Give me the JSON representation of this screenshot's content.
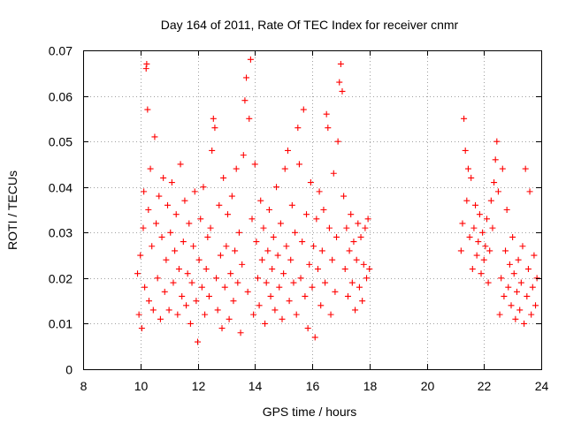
{
  "chart_data": {
    "type": "scatter",
    "title": "Day 164 of 2011, Rate Of TEC Index for receiver cnmr",
    "xlabel": "GPS time / hours",
    "ylabel": "ROTI / TECUs",
    "xlim": [
      8,
      24
    ],
    "ylim": [
      0,
      0.07
    ],
    "xticks": [
      "8",
      "10",
      "12",
      "14",
      "16",
      "18",
      "20",
      "22",
      "24"
    ],
    "yticks": [
      "0",
      "0.01",
      "0.02",
      "0.03",
      "0.04",
      "0.05",
      "0.06",
      "0.07"
    ],
    "grid": true,
    "marker": "plus",
    "color": "#ff0000",
    "series": [
      {
        "values": [
          [
            9.9,
            0.021
          ],
          [
            9.95,
            0.012
          ],
          [
            10.0,
            0.025
          ],
          [
            10.05,
            0.009
          ],
          [
            10.1,
            0.031
          ],
          [
            10.12,
            0.039
          ],
          [
            10.15,
            0.018
          ],
          [
            10.2,
            0.066
          ],
          [
            10.22,
            0.067
          ],
          [
            10.25,
            0.057
          ],
          [
            10.28,
            0.035
          ],
          [
            10.3,
            0.015
          ],
          [
            10.35,
            0.044
          ],
          [
            10.4,
            0.027
          ],
          [
            10.45,
            0.013
          ],
          [
            10.5,
            0.051
          ],
          [
            10.55,
            0.032
          ],
          [
            10.6,
            0.02
          ],
          [
            10.65,
            0.038
          ],
          [
            10.7,
            0.011
          ],
          [
            10.75,
            0.029
          ],
          [
            10.8,
            0.042
          ],
          [
            10.85,
            0.017
          ],
          [
            10.9,
            0.024
          ],
          [
            10.95,
            0.036
          ],
          [
            11.0,
            0.013
          ],
          [
            11.05,
            0.03
          ],
          [
            11.1,
            0.041
          ],
          [
            11.15,
            0.019
          ],
          [
            11.2,
            0.026
          ],
          [
            11.25,
            0.034
          ],
          [
            11.3,
            0.012
          ],
          [
            11.35,
            0.022
          ],
          [
            11.4,
            0.045
          ],
          [
            11.45,
            0.016
          ],
          [
            11.5,
            0.028
          ],
          [
            11.55,
            0.037
          ],
          [
            11.6,
            0.014
          ],
          [
            11.65,
            0.021
          ],
          [
            11.7,
            0.032
          ],
          [
            11.75,
            0.01
          ],
          [
            11.8,
            0.019
          ],
          [
            11.85,
            0.027
          ],
          [
            11.9,
            0.039
          ],
          [
            11.95,
            0.015
          ],
          [
            12.0,
            0.006
          ],
          [
            12.05,
            0.024
          ],
          [
            12.1,
            0.033
          ],
          [
            12.15,
            0.018
          ],
          [
            12.2,
            0.04
          ],
          [
            12.25,
            0.012
          ],
          [
            12.3,
            0.022
          ],
          [
            12.35,
            0.029
          ],
          [
            12.4,
            0.016
          ],
          [
            12.45,
            0.031
          ],
          [
            12.5,
            0.048
          ],
          [
            12.55,
            0.055
          ],
          [
            12.6,
            0.053
          ],
          [
            12.65,
            0.02
          ],
          [
            12.7,
            0.013
          ],
          [
            12.75,
            0.036
          ],
          [
            12.8,
            0.025
          ],
          [
            12.85,
            0.009
          ],
          [
            12.9,
            0.042
          ],
          [
            12.95,
            0.018
          ],
          [
            13.0,
            0.027
          ],
          [
            13.05,
            0.034
          ],
          [
            13.1,
            0.011
          ],
          [
            13.15,
            0.021
          ],
          [
            13.2,
            0.038
          ],
          [
            13.25,
            0.015
          ],
          [
            13.3,
            0.026
          ],
          [
            13.35,
            0.044
          ],
          [
            13.4,
            0.019
          ],
          [
            13.45,
            0.03
          ],
          [
            13.5,
            0.008
          ],
          [
            13.55,
            0.023
          ],
          [
            13.6,
            0.047
          ],
          [
            13.65,
            0.059
          ],
          [
            13.7,
            0.064
          ],
          [
            13.75,
            0.017
          ],
          [
            13.8,
            0.055
          ],
          [
            13.85,
            0.068
          ],
          [
            13.9,
            0.033
          ],
          [
            13.95,
            0.012
          ],
          [
            14.0,
            0.045
          ],
          [
            14.05,
            0.028
          ],
          [
            14.1,
            0.02
          ],
          [
            14.15,
            0.014
          ],
          [
            14.2,
            0.037
          ],
          [
            14.25,
            0.024
          ],
          [
            14.3,
            0.031
          ],
          [
            14.35,
            0.01
          ],
          [
            14.4,
            0.019
          ],
          [
            14.45,
            0.026
          ],
          [
            14.5,
            0.035
          ],
          [
            14.55,
            0.016
          ],
          [
            14.6,
            0.022
          ],
          [
            14.65,
            0.029
          ],
          [
            14.7,
            0.013
          ],
          [
            14.75,
            0.04
          ],
          [
            14.8,
            0.025
          ],
          [
            14.85,
            0.018
          ],
          [
            14.9,
            0.032
          ],
          [
            14.95,
            0.011
          ],
          [
            15.0,
            0.021
          ],
          [
            15.05,
            0.044
          ],
          [
            15.1,
            0.027
          ],
          [
            15.15,
            0.048
          ],
          [
            15.2,
            0.015
          ],
          [
            15.25,
            0.024
          ],
          [
            15.3,
            0.036
          ],
          [
            15.35,
            0.019
          ],
          [
            15.4,
            0.03
          ],
          [
            15.45,
            0.012
          ],
          [
            15.5,
            0.053
          ],
          [
            15.55,
            0.045
          ],
          [
            15.6,
            0.02
          ],
          [
            15.65,
            0.028
          ],
          [
            15.7,
            0.057
          ],
          [
            15.75,
            0.016
          ],
          [
            15.8,
            0.034
          ],
          [
            15.85,
            0.009
          ],
          [
            15.9,
            0.023
          ],
          [
            15.95,
            0.041
          ],
          [
            16.0,
            0.018
          ],
          [
            16.05,
            0.027
          ],
          [
            16.1,
            0.007
          ],
          [
            16.15,
            0.033
          ],
          [
            16.2,
            0.022
          ],
          [
            16.25,
            0.039
          ],
          [
            16.3,
            0.014
          ],
          [
            16.35,
            0.026
          ],
          [
            16.4,
            0.035
          ],
          [
            16.45,
            0.019
          ],
          [
            16.5,
            0.056
          ],
          [
            16.55,
            0.053
          ],
          [
            16.6,
            0.031
          ],
          [
            16.65,
            0.012
          ],
          [
            16.7,
            0.024
          ],
          [
            16.75,
            0.043
          ],
          [
            16.8,
            0.017
          ],
          [
            16.85,
            0.029
          ],
          [
            16.9,
            0.05
          ],
          [
            16.95,
            0.063
          ],
          [
            17.0,
            0.067
          ],
          [
            17.05,
            0.061
          ],
          [
            17.1,
            0.038
          ],
          [
            17.15,
            0.022
          ],
          [
            17.2,
            0.031
          ],
          [
            17.25,
            0.016
          ],
          [
            17.3,
            0.026
          ],
          [
            17.35,
            0.034
          ],
          [
            17.4,
            0.019
          ],
          [
            17.45,
            0.028
          ],
          [
            17.5,
            0.013
          ],
          [
            17.55,
            0.024
          ],
          [
            17.6,
            0.032
          ],
          [
            17.65,
            0.018
          ],
          [
            17.7,
            0.029
          ],
          [
            17.75,
            0.015
          ],
          [
            17.8,
            0.023
          ],
          [
            17.85,
            0.031
          ],
          [
            17.9,
            0.02
          ],
          [
            17.95,
            0.033
          ],
          [
            18.0,
            0.022
          ],
          [
            21.2,
            0.026
          ],
          [
            21.25,
            0.032
          ],
          [
            21.3,
            0.055
          ],
          [
            21.35,
            0.048
          ],
          [
            21.4,
            0.037
          ],
          [
            21.45,
            0.044
          ],
          [
            21.5,
            0.029
          ],
          [
            21.55,
            0.042
          ],
          [
            21.6,
            0.022
          ],
          [
            21.65,
            0.031
          ],
          [
            21.7,
            0.036
          ],
          [
            21.75,
            0.025
          ],
          [
            21.8,
            0.028
          ],
          [
            21.85,
            0.034
          ],
          [
            21.9,
            0.021
          ],
          [
            21.95,
            0.03
          ],
          [
            22.0,
            0.024
          ],
          [
            22.05,
            0.027
          ],
          [
            22.1,
            0.033
          ],
          [
            22.15,
            0.019
          ],
          [
            22.2,
            0.026
          ],
          [
            22.25,
            0.037
          ],
          [
            22.3,
            0.031
          ],
          [
            22.35,
            0.041
          ],
          [
            22.4,
            0.046
          ],
          [
            22.45,
            0.05
          ],
          [
            22.5,
            0.039
          ],
          [
            22.55,
            0.012
          ],
          [
            22.6,
            0.02
          ],
          [
            22.65,
            0.044
          ],
          [
            22.7,
            0.016
          ],
          [
            22.75,
            0.026
          ],
          [
            22.8,
            0.035
          ],
          [
            22.85,
            0.018
          ],
          [
            22.9,
            0.023
          ],
          [
            22.95,
            0.014
          ],
          [
            23.0,
            0.029
          ],
          [
            23.05,
            0.021
          ],
          [
            23.1,
            0.011
          ],
          [
            23.15,
            0.017
          ],
          [
            23.2,
            0.024
          ],
          [
            23.25,
            0.013
          ],
          [
            23.3,
            0.019
          ],
          [
            23.35,
            0.027
          ],
          [
            23.4,
            0.01
          ],
          [
            23.45,
            0.044
          ],
          [
            23.5,
            0.016
          ],
          [
            23.55,
            0.022
          ],
          [
            23.6,
            0.039
          ],
          [
            23.65,
            0.012
          ],
          [
            23.7,
            0.018
          ],
          [
            23.75,
            0.025
          ],
          [
            23.8,
            0.014
          ],
          [
            23.85,
            0.02
          ]
        ]
      }
    ]
  }
}
